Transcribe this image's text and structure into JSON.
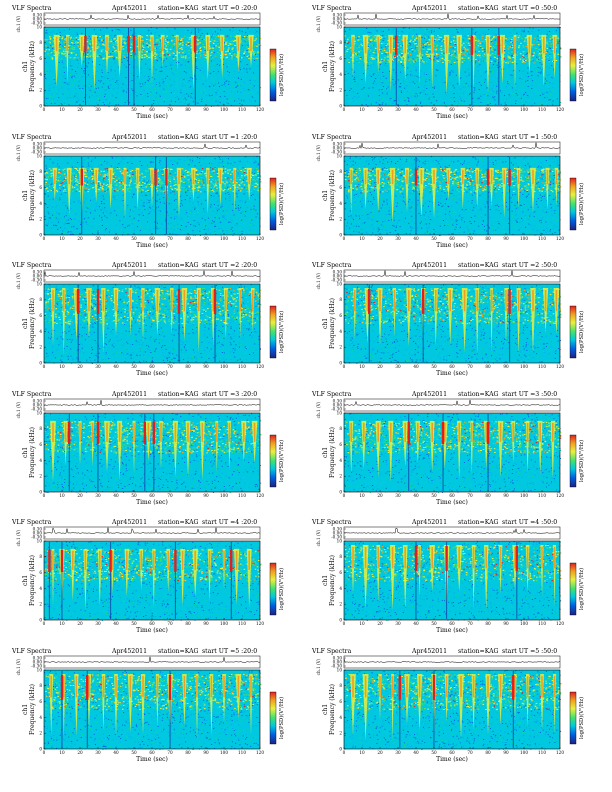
{
  "figure": {
    "colors": {
      "background": "#00c8e0",
      "noise": [
        "#00a8f0",
        "#10d8a0",
        "#0060e0"
      ],
      "low": "#40e070",
      "mid": "#e8f040",
      "high": "#f0a020",
      "peak": "#e02020",
      "trace": "#000000"
    }
  },
  "chart_data": [
    {
      "type": "heatmap",
      "title": "VLF Spectra",
      "date": "Apr452011",
      "station": "station=KAG",
      "start": "start  UT  =0 :20:0",
      "xlabel": "Time (sec)",
      "ylabel_top": "ch1",
      "ylabel": "Frequency (kHz)",
      "trace_label": "ch.1 (V)",
      "colorbar_label": "log(PSD)(V²/Hz)",
      "x_ticks": [
        "0",
        "10",
        "20",
        "30",
        "40",
        "50",
        "60",
        "70",
        "80",
        "90",
        "100",
        "110",
        "120"
      ],
      "y_ticks": [
        "0",
        "2",
        "4",
        "6",
        "8",
        "10"
      ],
      "trace_ticks": [
        "0.30",
        "0.00",
        "-0.30"
      ],
      "xlim": [
        0,
        120
      ],
      "ylim": [
        0,
        10
      ],
      "emission_band_khz": [
        6,
        9
      ],
      "bursts_sec": [
        7,
        13,
        21,
        28,
        35,
        42,
        53,
        60,
        66,
        74,
        83,
        91,
        99,
        108,
        115
      ],
      "strong_bursts_sec": [
        23,
        47,
        50,
        84
      ]
    },
    {
      "type": "heatmap",
      "title": "VLF Spectra",
      "date": "Apr452011",
      "station": "station=KAG",
      "start": "start  UT  =0 :50:0",
      "xlabel": "Time (sec)",
      "ylabel_top": "ch1",
      "ylabel": "Frequency (kHz)",
      "trace_label": "ch.1 (V)",
      "colorbar_label": "log(PSD)(V²/Hz)",
      "x_ticks": [
        "0",
        "10",
        "20",
        "30",
        "40",
        "50",
        "60",
        "70",
        "80",
        "90",
        "100",
        "110",
        "120"
      ],
      "y_ticks": [
        "0",
        "2",
        "4",
        "6",
        "8",
        "10"
      ],
      "trace_ticks": [
        "0.30",
        "0.00",
        "-0.30"
      ],
      "xlim": [
        0,
        120
      ],
      "ylim": [
        0,
        10
      ],
      "emission_band_khz": [
        5.5,
        9
      ],
      "bursts_sec": [
        5,
        12,
        19,
        26,
        34,
        42,
        49,
        57,
        64,
        72,
        80,
        88,
        95,
        103,
        111,
        117
      ],
      "strong_bursts_sec": [
        29,
        71,
        86
      ]
    },
    {
      "type": "heatmap",
      "title": "VLF Spectra",
      "date": "Apr452011",
      "station": "station=KAG",
      "start": "start  UT  =1 :20:0",
      "xlabel": "Time (sec)",
      "ylabel_top": "ch1",
      "ylabel": "Frequency (kHz)",
      "trace_label": "ch.1 (V)",
      "colorbar_label": "log(PSD)(V²/Hz)",
      "x_ticks": [
        "0",
        "10",
        "20",
        "30",
        "40",
        "50",
        "60",
        "70",
        "80",
        "90",
        "100",
        "110",
        "120"
      ],
      "y_ticks": [
        "0",
        "2",
        "4",
        "6",
        "8",
        "10"
      ],
      "trace_ticks": [
        "0.30",
        "0.00",
        "-0.30"
      ],
      "xlim": [
        0,
        120
      ],
      "ylim": [
        0,
        10
      ],
      "emission_band_khz": [
        5.5,
        8.5
      ],
      "bursts_sec": [
        6,
        14,
        21,
        29,
        37,
        45,
        52,
        60,
        68,
        75,
        83,
        91,
        98,
        106,
        114
      ],
      "strong_bursts_sec": [
        21,
        62,
        68
      ]
    },
    {
      "type": "heatmap",
      "title": "VLF Spectra",
      "date": "Apr452011",
      "station": "station=KAG",
      "start": "start  UT  =1 :50:0",
      "xlabel": "Time (sec)",
      "ylabel_top": "ch1",
      "ylabel": "Frequency (kHz)",
      "trace_label": "ch.1 (V)",
      "colorbar_label": "log(PSD)(V²/Hz)",
      "x_ticks": [
        "0",
        "10",
        "20",
        "30",
        "40",
        "50",
        "60",
        "70",
        "80",
        "90",
        "100",
        "110",
        "120"
      ],
      "y_ticks": [
        "0",
        "2",
        "4",
        "6",
        "8",
        "10"
      ],
      "trace_ticks": [
        "0.30",
        "0.00",
        "-0.30"
      ],
      "xlim": [
        0,
        120
      ],
      "ylim": [
        0,
        10
      ],
      "emission_band_khz": [
        5.5,
        8.5
      ],
      "bursts_sec": [
        4,
        12,
        19,
        27,
        35,
        43,
        50,
        58,
        66,
        74,
        82,
        89,
        97,
        105,
        113,
        118
      ],
      "strong_bursts_sec": [
        40,
        80,
        92
      ]
    },
    {
      "type": "heatmap",
      "title": "VLF Spectra",
      "date": "Apr452011",
      "station": "station=KAG",
      "start": "start  UT  =2 :20:0",
      "xlabel": "Time (sec)",
      "ylabel_top": "ch1",
      "ylabel": "Frequency (kHz)",
      "trace_label": "ch.1 (V)",
      "colorbar_label": "log(PSD)(V²/Hz)",
      "x_ticks": [
        "0",
        "10",
        "20",
        "30",
        "40",
        "50",
        "60",
        "70",
        "80",
        "90",
        "100",
        "110",
        "120"
      ],
      "y_ticks": [
        "0",
        "2",
        "4",
        "6",
        "8",
        "10"
      ],
      "trace_ticks": [
        "0.30",
        "0.00",
        "-0.30"
      ],
      "xlim": [
        0,
        120
      ],
      "ylim": [
        0,
        10
      ],
      "emission_band_khz": [
        5,
        9.5
      ],
      "bursts_sec": [
        5,
        11,
        18,
        25,
        33,
        40,
        48,
        55,
        63,
        71,
        78,
        86,
        94,
        101,
        109,
        116
      ],
      "strong_bursts_sec": [
        19,
        30,
        75,
        95
      ]
    },
    {
      "type": "heatmap",
      "title": "VLF Spectra",
      "date": "Apr452011",
      "station": "station=KAG",
      "start": "start  UT  =2 :50:0",
      "xlabel": "Time (sec)",
      "ylabel_top": "ch1",
      "ylabel": "Frequency (kHz)",
      "trace_label": "ch.1 (V)",
      "colorbar_label": "log(PSD)(V²/Hz)",
      "x_ticks": [
        "0",
        "10",
        "20",
        "30",
        "40",
        "50",
        "60",
        "70",
        "80",
        "90",
        "100",
        "110",
        "120"
      ],
      "y_ticks": [
        "0",
        "2",
        "4",
        "6",
        "8",
        "10"
      ],
      "trace_ticks": [
        "0.30",
        "0.00",
        "-0.30"
      ],
      "xlim": [
        0,
        120
      ],
      "ylim": [
        0,
        10
      ],
      "emission_band_khz": [
        5,
        9.5
      ],
      "bursts_sec": [
        6,
        13,
        20,
        28,
        36,
        44,
        51,
        59,
        67,
        74,
        82,
        90,
        97,
        105,
        112,
        118
      ],
      "strong_bursts_sec": [
        14,
        44,
        92
      ]
    },
    {
      "type": "heatmap",
      "title": "VLF Spectra",
      "date": "Apr452011",
      "station": "station=KAG",
      "start": "start  UT  =3 :20:0",
      "xlabel": "Time (sec)",
      "ylabel_top": "ch1",
      "ylabel": "Frequency (kHz)",
      "trace_label": "ch.1 (V)",
      "colorbar_label": "log(PSD)(V²/Hz)",
      "x_ticks": [
        "0",
        "10",
        "20",
        "30",
        "40",
        "50",
        "60",
        "70",
        "80",
        "90",
        "100",
        "110",
        "120"
      ],
      "y_ticks": [
        "0",
        "2",
        "4",
        "6",
        "8",
        "10"
      ],
      "trace_ticks": [
        "0.30",
        "0.00",
        "-0.30"
      ],
      "xlim": [
        0,
        120
      ],
      "ylim": [
        0,
        10
      ],
      "emission_band_khz": [
        5,
        9
      ],
      "bursts_sec": [
        5,
        12,
        20,
        27,
        35,
        42,
        50,
        58,
        65,
        73,
        80,
        88,
        96,
        103,
        111,
        117
      ],
      "strong_bursts_sec": [
        14,
        30,
        56,
        61
      ]
    },
    {
      "type": "heatmap",
      "title": "VLF Spectra",
      "date": "Apr452011",
      "station": "station=KAG",
      "start": "start  UT  =3 :50:0",
      "xlabel": "Time (sec)",
      "ylabel_top": "ch1",
      "ylabel": "Frequency (kHz)",
      "trace_label": "ch.1 (V)",
      "colorbar_label": "log(PSD)(V²/Hz)",
      "x_ticks": [
        "0",
        "10",
        "20",
        "30",
        "40",
        "50",
        "60",
        "70",
        "80",
        "90",
        "100",
        "110",
        "120"
      ],
      "y_ticks": [
        "0",
        "2",
        "4",
        "6",
        "8",
        "10"
      ],
      "trace_ticks": [
        "0.30",
        "0.00",
        "-0.30"
      ],
      "xlim": [
        0,
        120
      ],
      "ylim": [
        0,
        10
      ],
      "emission_band_khz": [
        5,
        9
      ],
      "bursts_sec": [
        4,
        11,
        19,
        26,
        34,
        41,
        49,
        56,
        64,
        71,
        79,
        87,
        94,
        102,
        109,
        116
      ],
      "strong_bursts_sec": [
        36,
        55,
        80
      ]
    },
    {
      "type": "heatmap",
      "title": "VLF Spectra",
      "date": "Apr452011",
      "station": "station=KAG",
      "start": "start  UT  =4 :20:0",
      "xlabel": "Time (sec)",
      "ylabel_top": "ch1",
      "ylabel": "Frequency (kHz)",
      "trace_label": "ch.1 (V)",
      "colorbar_label": "log(PSD)(V²/Hz)",
      "x_ticks": [
        "0",
        "10",
        "20",
        "30",
        "40",
        "50",
        "60",
        "70",
        "80",
        "90",
        "100",
        "110",
        "120"
      ],
      "y_ticks": [
        "0",
        "2",
        "4",
        "6",
        "8",
        "10"
      ],
      "trace_ticks": [
        "0.30",
        "0.00",
        "-0.30"
      ],
      "xlim": [
        0,
        120
      ],
      "ylim": [
        0,
        10
      ],
      "emission_band_khz": [
        5,
        9
      ],
      "bursts_sec": [
        5,
        10,
        16,
        23,
        31,
        38,
        46,
        54,
        61,
        69,
        77,
        84,
        92,
        100,
        107,
        114
      ],
      "strong_bursts_sec": [
        3,
        10,
        37,
        73,
        104
      ]
    },
    {
      "type": "heatmap",
      "title": "VLF Spectra",
      "date": "Apr452011",
      "station": "station=KAG",
      "start": "start  UT  =4 :50:0",
      "xlabel": "Time (sec)",
      "ylabel_top": "ch1",
      "ylabel": "Frequency (kHz)",
      "trace_label": "ch.1 (V)",
      "colorbar_label": "log(PSD)(V²/Hz)",
      "x_ticks": [
        "0",
        "10",
        "20",
        "30",
        "40",
        "50",
        "60",
        "70",
        "80",
        "90",
        "100",
        "110",
        "120"
      ],
      "y_ticks": [
        "0",
        "2",
        "4",
        "6",
        "8",
        "10"
      ],
      "trace_ticks": [
        "0.30",
        "0.00",
        "-0.30"
      ],
      "xlim": [
        0,
        120
      ],
      "ylim": [
        0,
        10
      ],
      "emission_band_khz": [
        5,
        9.5
      ],
      "bursts_sec": [
        5,
        12,
        19,
        27,
        34,
        42,
        49,
        57,
        64,
        72,
        79,
        87,
        95,
        102,
        110,
        117
      ],
      "strong_bursts_sec": [
        40,
        57,
        96
      ]
    },
    {
      "type": "heatmap",
      "title": "VLF Spectra",
      "date": "Apr452011",
      "station": "station=KAG",
      "start": "start  UT  =5 :20:0",
      "xlabel": "Time (sec)",
      "ylabel_top": "ch1",
      "ylabel": "Frequency (kHz)",
      "trace_label": "ch.1 (V)",
      "colorbar_label": "log(PSD)(V²/Hz)",
      "x_ticks": [
        "0",
        "10",
        "20",
        "30",
        "40",
        "50",
        "60",
        "70",
        "80",
        "90",
        "100",
        "110",
        "120"
      ],
      "y_ticks": [
        "0",
        "2",
        "4",
        "6",
        "8",
        "10"
      ],
      "trace_ticks": [
        "0.30",
        "0.00",
        "-0.30"
      ],
      "xlim": [
        0,
        120
      ],
      "ylim": [
        0,
        10
      ],
      "emission_band_khz": [
        5,
        9.5
      ],
      "bursts_sec": [
        4,
        11,
        18,
        25,
        33,
        40,
        48,
        55,
        63,
        70,
        78,
        85,
        93,
        100,
        108,
        115
      ],
      "strong_bursts_sec": [
        10,
        24,
        70
      ]
    },
    {
      "type": "heatmap",
      "title": "VLF Spectra",
      "date": "Apr452011",
      "station": "station=KAG",
      "start": "start  UT  =5 :50:0",
      "xlabel": "Time (sec)",
      "ylabel_top": "ch1",
      "ylabel": "Frequency (kHz)",
      "trace_label": "ch.1 (V)",
      "colorbar_label": "log(PSD)(V²/Hz)",
      "x_ticks": [
        "0",
        "10",
        "20",
        "30",
        "40",
        "50",
        "60",
        "70",
        "80",
        "90",
        "100",
        "110",
        "120"
      ],
      "y_ticks": [
        "0",
        "2",
        "4",
        "6",
        "8",
        "10"
      ],
      "trace_ticks": [
        "0.30",
        "0.00",
        "-0.30"
      ],
      "xlim": [
        0,
        120
      ],
      "ylim": [
        0,
        10
      ],
      "emission_band_khz": [
        5,
        9.5
      ],
      "bursts_sec": [
        5,
        12,
        20,
        27,
        35,
        42,
        50,
        57,
        65,
        72,
        80,
        87,
        95,
        102,
        110,
        117
      ],
      "strong_bursts_sec": [
        31,
        50,
        94
      ]
    }
  ]
}
